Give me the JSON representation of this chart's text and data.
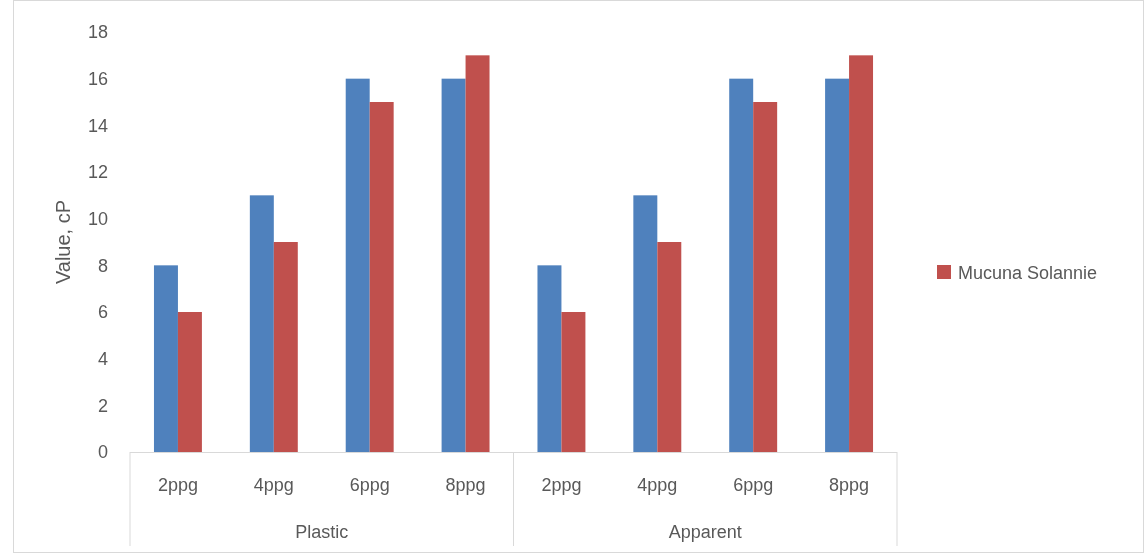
{
  "chart_data": {
    "type": "bar",
    "ylabel": "Value, cP",
    "categories": [
      "2ppg",
      "4ppg",
      "6ppg",
      "8ppg",
      "2ppg",
      "4ppg",
      "6ppg",
      "8ppg"
    ],
    "series": [
      {
        "color": "#4f81bd",
        "values": [
          8,
          11,
          16,
          16,
          8,
          11,
          16,
          16
        ]
      },
      {
        "name": "Mucuna Solannie",
        "color": "#c0504d",
        "values": [
          6,
          9,
          15,
          17,
          6,
          9,
          15,
          17
        ]
      }
    ],
    "ylim": [
      0,
      18
    ],
    "yticks": [
      0,
      2,
      4,
      6,
      8,
      10,
      12,
      14,
      16,
      18
    ],
    "grid": false,
    "legend": "right",
    "annotations": [
      "Plastic",
      "Apparent"
    ]
  }
}
